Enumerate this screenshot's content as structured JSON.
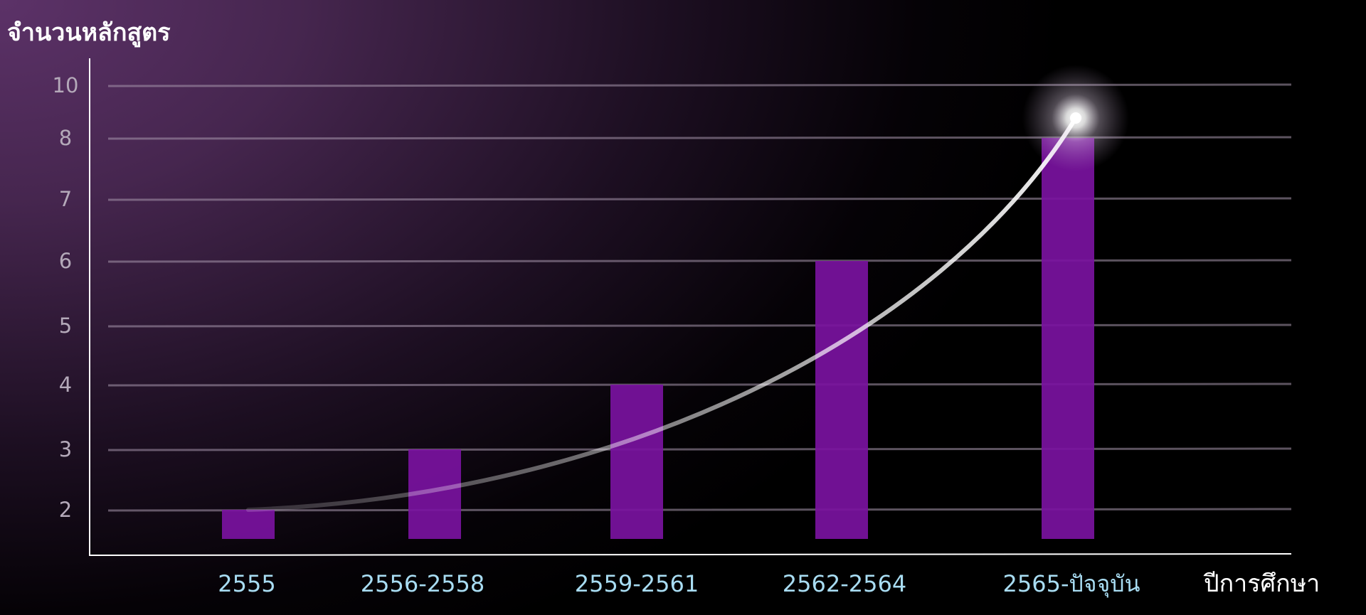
{
  "chart_data": {
    "type": "bar",
    "ylabel": "จำนวนหลักสูตร",
    "xlabel": "ปีการศึกษา",
    "categories": [
      "2555",
      "2556-2558",
      "2559-2561",
      "2562-2564",
      "2565-ปัจจุบัน"
    ],
    "values": [
      2,
      3,
      4,
      6,
      8
    ],
    "yticks": [
      "10",
      "8",
      "7",
      "6",
      "5",
      "4",
      "3",
      "2"
    ],
    "colors": {
      "bar": "#7a12a0",
      "xtick_label": "#a8dcf2",
      "ytick_label": "#b4a9b9",
      "axis": "#ffffff",
      "grid": "#a898ad",
      "trend": "#ffffff"
    },
    "grid": true,
    "trend_line": true
  }
}
